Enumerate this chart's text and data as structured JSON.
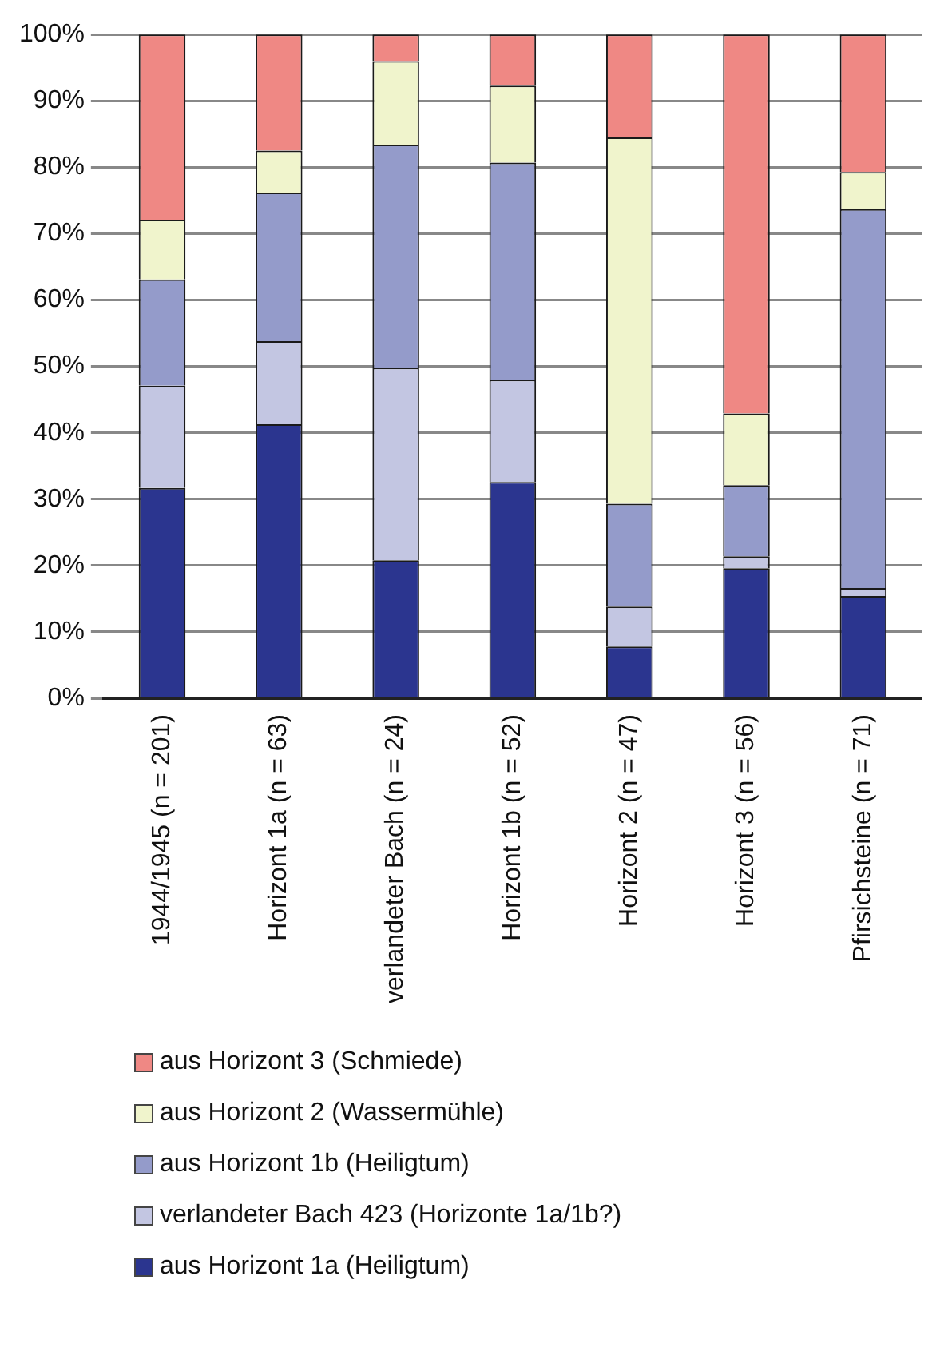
{
  "chart_data": {
    "type": "bar",
    "stacked": true,
    "categories": [
      "1944/1945 (n = 201)",
      "Horizont 1a (n = 63)",
      "verlandeter Bach (n = 24)",
      "Horizont 1b (n = 52)",
      "Horizont 2 (n = 47)",
      "Horizont 3 (n = 56)",
      "Pfirsichsteine (n = 71)"
    ],
    "series": [
      {
        "name": "aus Horizont 1a (Heiligtum)",
        "color": "#2b358f",
        "values": [
          31.7,
          41.3,
          20.8,
          32.6,
          7.8,
          19.6,
          15.4
        ]
      },
      {
        "name": "verlandeter Bach 423 (Horizonte 1a/1b?)",
        "color": "#c3c6e2",
        "values": [
          15.4,
          12.5,
          29.0,
          15.4,
          6.0,
          1.8,
          1.2
        ]
      },
      {
        "name": "aus Horizont 1b (Heiligtum)",
        "color": "#949bca",
        "values": [
          16.0,
          22.4,
          33.6,
          32.7,
          15.5,
          10.7,
          57.1
        ]
      },
      {
        "name": "aus Horizont 2 (Wassermühle)",
        "color": "#f0f4cc",
        "values": [
          9.0,
          6.3,
          12.6,
          11.6,
          55.2,
          10.8,
          5.6
        ]
      },
      {
        "name": "aus Horizont 3 (Schmiede)",
        "color": "#ef8884",
        "values": [
          27.9,
          17.5,
          4.0,
          7.7,
          15.5,
          57.1,
          20.7
        ]
      }
    ],
    "ylim": [
      0,
      100
    ],
    "yticks": [
      {
        "value": 0,
        "label": "0%"
      },
      {
        "value": 10,
        "label": "10%"
      },
      {
        "value": 20,
        "label": "20%"
      },
      {
        "value": 30,
        "label": "30%"
      },
      {
        "value": 40,
        "label": "40%"
      },
      {
        "value": 50,
        "label": "50%"
      },
      {
        "value": 60,
        "label": "60%"
      },
      {
        "value": 70,
        "label": "70%"
      },
      {
        "value": 80,
        "label": "80%"
      },
      {
        "value": 90,
        "label": "90%"
      },
      {
        "value": 100,
        "label": "100%"
      }
    ],
    "grid": "y",
    "legend": "bottom"
  }
}
